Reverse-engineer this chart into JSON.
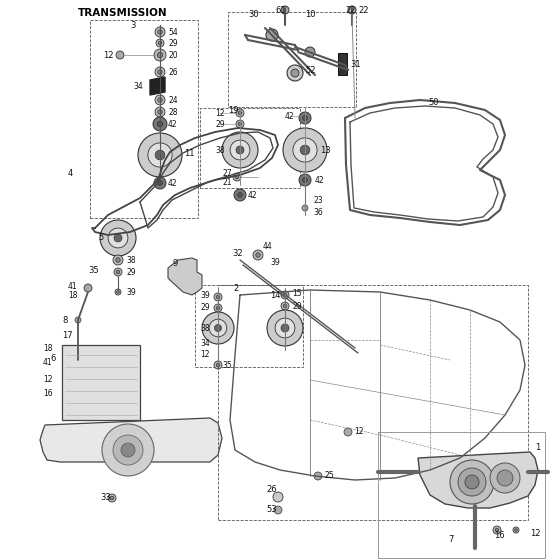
{
  "title": "TRANSMISSION",
  "bg_color": "#ffffff",
  "line_color": "#222222",
  "text_color": "#111111",
  "fig_width": 5.6,
  "fig_height": 5.6,
  "dpi": 100
}
